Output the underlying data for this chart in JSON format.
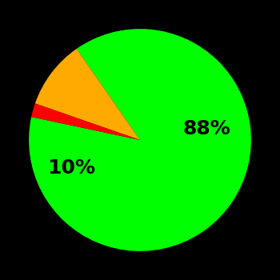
{
  "slices": [
    88,
    10,
    2
  ],
  "colors": [
    "#00ff00",
    "#ffaa00",
    "#ff0000"
  ],
  "labels": [
    "88%",
    "10%",
    ""
  ],
  "background_color": "#000000",
  "label_fontsize": 18,
  "label_fontweight": "bold",
  "startangle": 168,
  "counterclock": true,
  "label_positions": [
    [
      0.6,
      0.1
    ],
    [
      -0.62,
      -0.25
    ],
    [
      null,
      null
    ]
  ]
}
